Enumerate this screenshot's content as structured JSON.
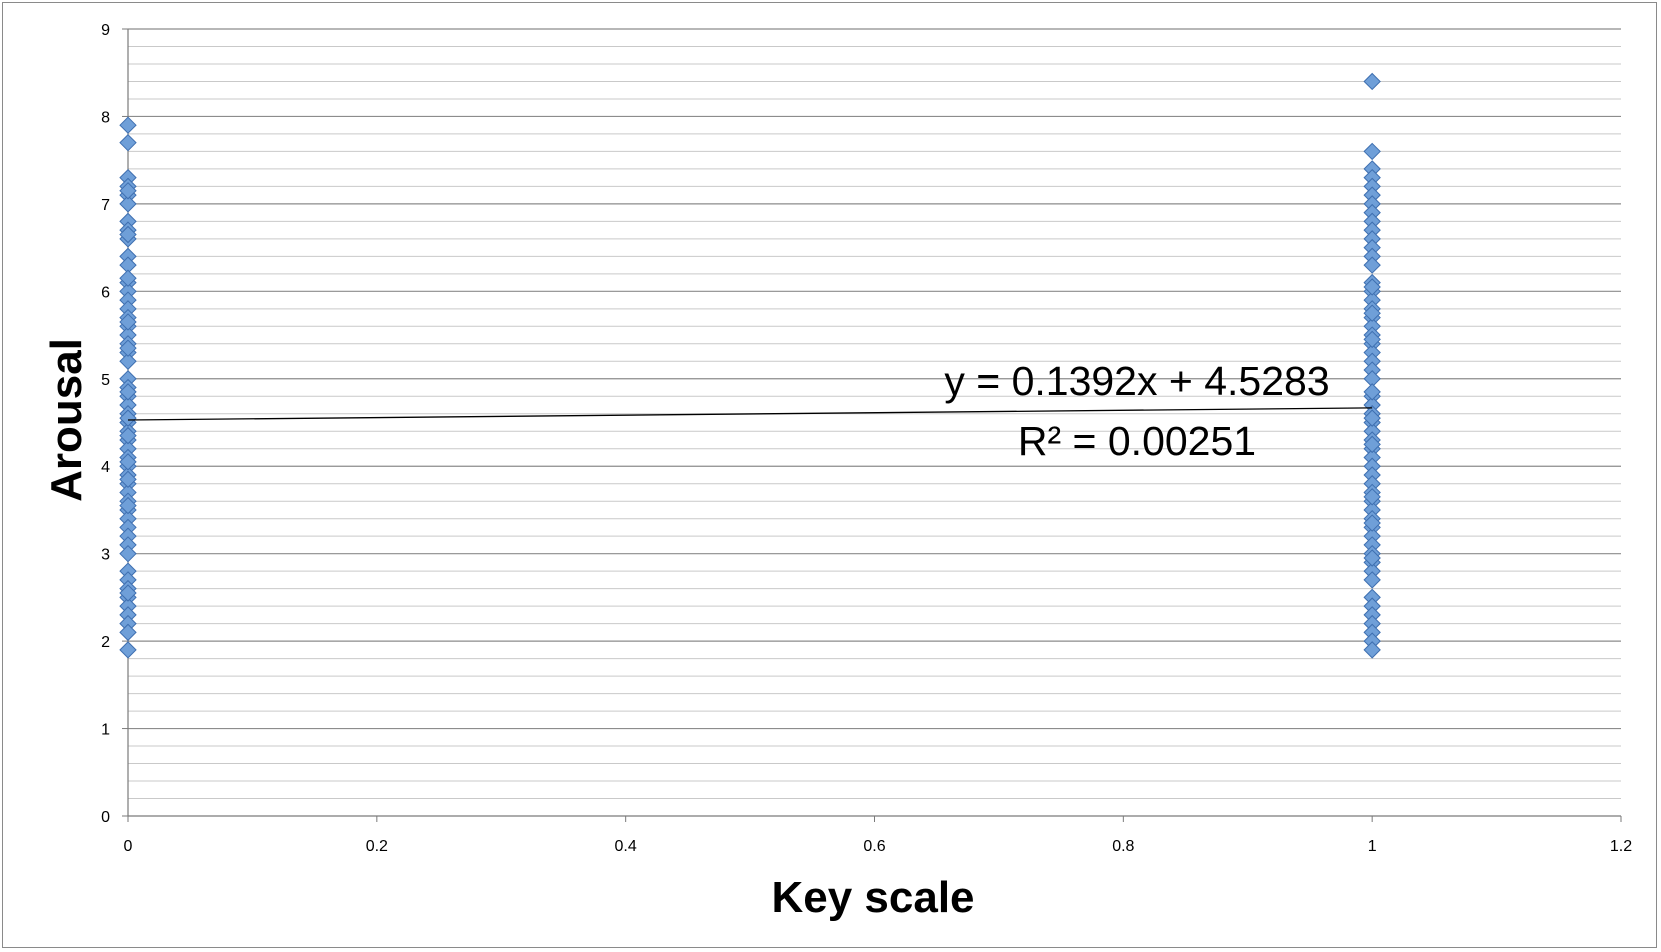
{
  "chart_data": {
    "type": "scatter",
    "xlabel": "Key scale",
    "ylabel": "Arousal",
    "xlim": [
      0,
      1.2
    ],
    "ylim": [
      0,
      9
    ],
    "x_ticks": [
      "0",
      "0.2",
      "0.4",
      "0.6",
      "0.8",
      "1",
      "1.2"
    ],
    "y_ticks": [
      "0",
      "1",
      "2",
      "3",
      "4",
      "5",
      "6",
      "7",
      "8",
      "9"
    ],
    "minor_grid_step": 0.2,
    "grid": true,
    "legend": "none",
    "marker": "diamond",
    "marker_color": "#6f9fd8",
    "marker_edge_color": "#3e6fb0",
    "series": [
      {
        "x": [
          0,
          0,
          0,
          0,
          0,
          0,
          0,
          0,
          0,
          0,
          0,
          0,
          0,
          0,
          0,
          0,
          0,
          0,
          0,
          0,
          0,
          0,
          0,
          0,
          0,
          0,
          0,
          0,
          0,
          0,
          0,
          0,
          0,
          0,
          0,
          0,
          0,
          0,
          0,
          0,
          0,
          0,
          0,
          0,
          0,
          0,
          0,
          0,
          0,
          0,
          0,
          0,
          0,
          0,
          0,
          0,
          0,
          0,
          0,
          0,
          0,
          0,
          0
        ],
        "y": [
          7.9,
          7.7,
          7.3,
          7.2,
          7.1,
          7.0,
          6.8,
          6.7,
          6.6,
          6.4,
          6.3,
          6.1,
          6.0,
          5.9,
          5.8,
          5.7,
          5.6,
          5.5,
          5.4,
          5.3,
          5.2,
          5.0,
          4.9,
          4.8,
          4.7,
          4.6,
          4.5,
          4.4,
          4.3,
          4.2,
          4.1,
          4.0,
          3.9,
          3.8,
          3.7,
          3.6,
          3.5,
          3.4,
          3.3,
          3.2,
          3.1,
          3.0,
          2.8,
          2.7,
          2.6,
          2.5,
          2.4,
          2.3,
          2.2,
          2.1,
          1.9,
          4.55,
          5.35,
          3.55,
          4.05,
          6.15,
          5.65,
          4.85,
          3.85,
          2.55,
          6.65,
          7.15,
          4.35
        ]
      },
      {
        "x": [
          1,
          1,
          1,
          1,
          1,
          1,
          1,
          1,
          1,
          1,
          1,
          1,
          1,
          1,
          1,
          1,
          1,
          1,
          1,
          1,
          1,
          1,
          1,
          1,
          1,
          1,
          1,
          1,
          1,
          1,
          1,
          1,
          1,
          1,
          1,
          1,
          1,
          1,
          1,
          1,
          1,
          1,
          1,
          1,
          1,
          1,
          1,
          1,
          1,
          1,
          1,
          1,
          1,
          1,
          1,
          1,
          1,
          1,
          1,
          1,
          1,
          1,
          1,
          1
        ],
        "y": [
          8.4,
          7.6,
          7.4,
          7.3,
          7.2,
          7.1,
          7.0,
          6.9,
          6.8,
          6.7,
          6.6,
          6.5,
          6.4,
          6.3,
          6.1,
          6.0,
          5.9,
          5.8,
          5.7,
          5.6,
          5.5,
          5.4,
          5.3,
          5.2,
          5.1,
          5.0,
          4.8,
          4.7,
          4.6,
          4.5,
          4.4,
          4.3,
          4.2,
          4.1,
          4.0,
          3.9,
          3.8,
          3.7,
          3.6,
          3.5,
          3.4,
          3.3,
          3.2,
          3.1,
          3.0,
          2.9,
          2.8,
          2.7,
          2.5,
          2.4,
          2.3,
          2.2,
          2.1,
          2.0,
          1.9,
          6.05,
          5.45,
          4.25,
          3.65,
          2.95,
          4.55,
          5.75,
          3.35,
          4.85
        ]
      }
    ],
    "trendline": {
      "type": "linear",
      "slope": 0.1392,
      "intercept": 4.5283,
      "x_range": [
        0,
        1
      ],
      "equation_label": "y = 0.1392x + 4.5283",
      "r2_label": "R² = 0.00251"
    }
  }
}
